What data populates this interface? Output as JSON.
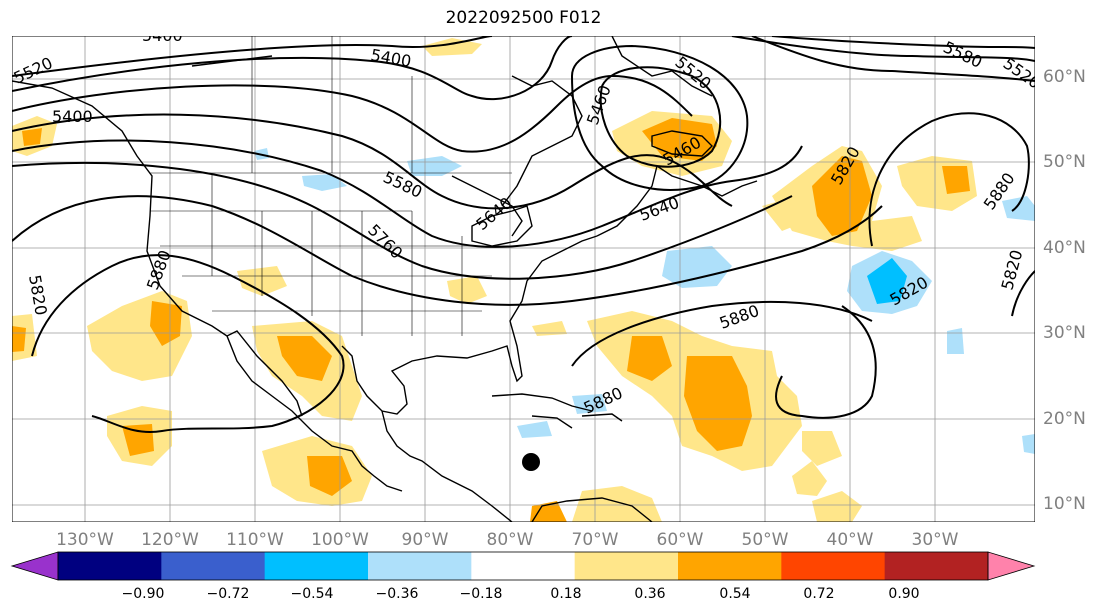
{
  "title": "2022092500 F012",
  "lat_labels": [
    "60°N",
    "50°N",
    "40°N",
    "30°N",
    "20°N",
    "10°N"
  ],
  "lon_labels": [
    "130°W",
    "120°W",
    "110°W",
    "100°W",
    "90°W",
    "80°W",
    "70°W",
    "60°W",
    "50°W",
    "40°W",
    "30°W"
  ],
  "contour_labels": [
    "5400",
    "5400",
    "5460",
    "5520",
    "5520",
    "5580",
    "5580",
    "5640",
    "5640",
    "5820",
    "5820",
    "5820",
    "5820",
    "5880",
    "5880",
    "5880",
    "5880",
    "5460",
    "5400",
    "5520",
    "5760"
  ],
  "colorbar": {
    "ticks": [
      "−0.90",
      "−0.72",
      "−0.54",
      "−0.36",
      "−0.18",
      "0.18",
      "0.36",
      "0.54",
      "0.72",
      "0.90"
    ],
    "colors": [
      "#9932cc",
      "#000080",
      "#3a5fcd",
      "#00bfff",
      "#aee0fa",
      "#ffffff",
      "#ffe68a",
      "#ffa500",
      "#ff4500",
      "#b22222",
      "#ff82ab"
    ]
  },
  "marker": "storm-position"
}
